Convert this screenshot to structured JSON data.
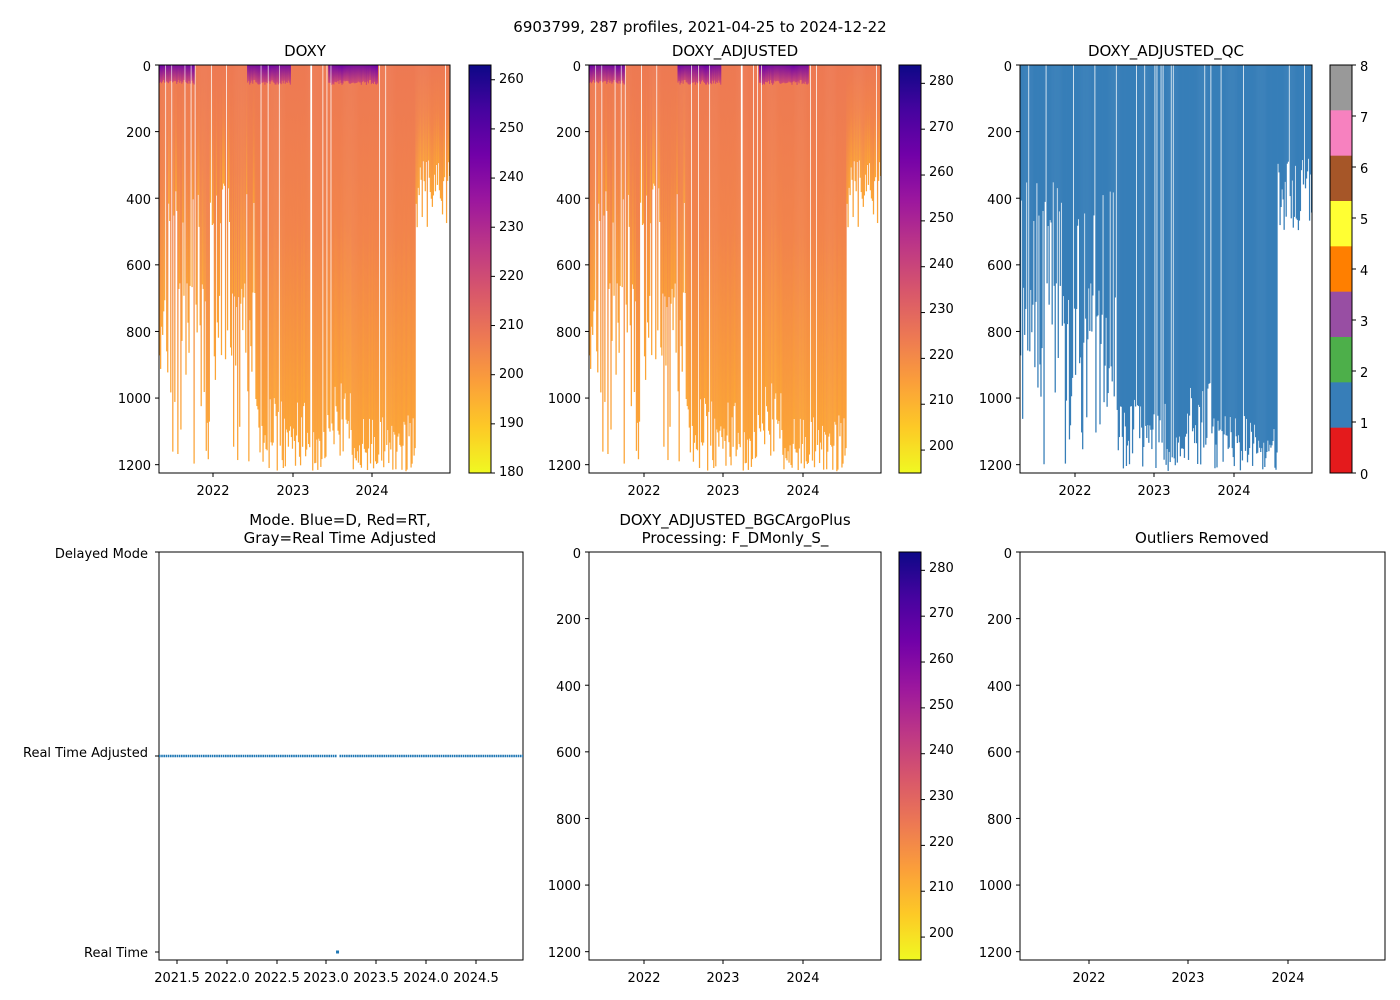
{
  "figure_title": "6903799, 287 profiles, 2021-04-25 to 2024-12-22",
  "colors": {
    "plasma": [
      "#f0f921",
      "#fdca26",
      "#fb9f3a",
      "#ed7953",
      "#d8576b",
      "#bd3786",
      "#9c179e",
      "#7201a8",
      "#46039f",
      "#0d0887"
    ],
    "qc": [
      "#e41a1c",
      "#377eb8",
      "#4daf4a",
      "#984ea3",
      "#ff7f00",
      "#ffff33",
      "#a65628",
      "#f781bf",
      "#999999"
    ],
    "mode_points": "#1f77b4"
  },
  "chart_data": [
    {
      "type": "heatmap",
      "title": "DOXY",
      "x_ticks": [
        "2022",
        "2023",
        "2024"
      ],
      "y_ticks": [
        "0",
        "200",
        "400",
        "600",
        "800",
        "1000",
        "1200"
      ],
      "ylim": [
        1225,
        0
      ],
      "colorbar": {
        "min": 180,
        "max": 263,
        "ticks": [
          "180",
          "190",
          "200",
          "210",
          "220",
          "230",
          "240",
          "250",
          "260"
        ]
      }
    },
    {
      "type": "heatmap",
      "title": "DOXY_ADJUSTED",
      "x_ticks": [
        "2022",
        "2023",
        "2024"
      ],
      "y_ticks": [
        "0",
        "200",
        "400",
        "600",
        "800",
        "1000",
        "1200"
      ],
      "ylim": [
        1225,
        0
      ],
      "colorbar": {
        "min": 195,
        "max": 284,
        "ticks": [
          "200",
          "210",
          "220",
          "230",
          "240",
          "250",
          "260",
          "270",
          "280"
        ]
      }
    },
    {
      "type": "heatmap",
      "title": "DOXY_ADJUSTED_QC",
      "x_ticks": [
        "2022",
        "2023",
        "2024"
      ],
      "y_ticks": [
        "0",
        "200",
        "400",
        "600",
        "800",
        "1000",
        "1200"
      ],
      "ylim": [
        1225,
        0
      ],
      "qc_value_shown": 1,
      "colorbar": {
        "min": 0,
        "max": 8,
        "ticks": [
          "0",
          "1",
          "2",
          "3",
          "4",
          "5",
          "6",
          "7",
          "8"
        ]
      }
    },
    {
      "type": "scatter",
      "title_line1": "Mode. Blue=D, Red=RT,",
      "title_line2": "Gray=Real Time Adjusted",
      "y_categories": [
        "Real Time",
        "Real Time Adjusted",
        "Delayed Mode"
      ],
      "x_ticks": [
        "2021.5",
        "2022.0",
        "2022.5",
        "2023.0",
        "2023.5",
        "2024.0",
        "2024.5"
      ],
      "xlim": [
        2021.31,
        2024.98
      ],
      "points": [
        {
          "x_start": 2021.31,
          "x_end": 2023.1,
          "mode": "Real Time Adjusted"
        },
        {
          "x": 2023.11,
          "mode": "Real Time"
        },
        {
          "x_start": 2023.13,
          "x_end": 2024.98,
          "mode": "Real Time Adjusted"
        }
      ]
    },
    {
      "type": "heatmap",
      "title_line1": "DOXY_ADJUSTED_BGCArgoPlus",
      "title_line2": "Processing: F_DMonly_S_",
      "x_ticks": [
        "2022",
        "2023",
        "2024"
      ],
      "y_ticks": [
        "0",
        "200",
        "400",
        "600",
        "800",
        "1000",
        "1200"
      ],
      "ylim": [
        1225,
        0
      ],
      "empty": true,
      "colorbar": {
        "min": 195,
        "max": 284,
        "ticks": [
          "200",
          "210",
          "220",
          "230",
          "240",
          "250",
          "260",
          "270",
          "280"
        ]
      }
    },
    {
      "type": "heatmap",
      "title": "Outliers Removed",
      "x_ticks": [
        "2022",
        "2023",
        "2024"
      ],
      "y_ticks": [
        "0",
        "200",
        "400",
        "600",
        "800",
        "1000",
        "1200"
      ],
      "ylim": [
        1225,
        0
      ],
      "empty": true
    }
  ]
}
